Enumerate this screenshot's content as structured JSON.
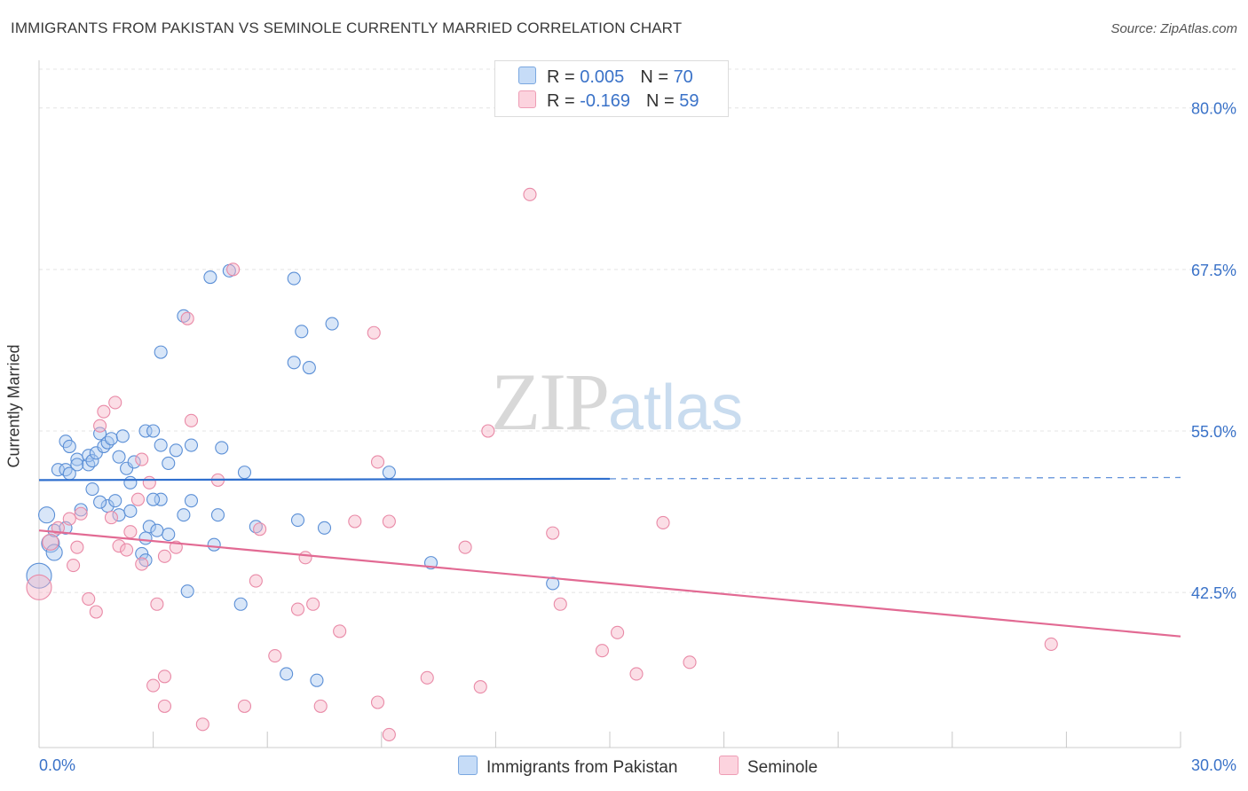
{
  "title": "IMMIGRANTS FROM PAKISTAN VS SEMINOLE CURRENTLY MARRIED CORRELATION CHART",
  "source": "Source: ZipAtlas.com",
  "watermark": {
    "zip": "ZIP",
    "atlas": "atlas"
  },
  "legend": {
    "rows": [
      {
        "r_label": "R = ",
        "r_value": "0.005",
        "n_label": "N = ",
        "n_value": "70",
        "color": "#a9c8f0"
      },
      {
        "r_label": "R = ",
        "r_value": "-0.169",
        "n_label": "N = ",
        "n_value": "59",
        "color": "#f7b6c8"
      }
    ]
  },
  "bottom_legend": {
    "pakistan": "Immigrants from Pakistan",
    "seminole": "Seminole"
  },
  "chart_data": {
    "type": "scatter",
    "ylabel": "Currently Married",
    "xlim": [
      0,
      30
    ],
    "ylim": [
      30.5,
      83
    ],
    "x_tick_labels": {
      "min": "0.0%",
      "max": "30.0%"
    },
    "y_ticks": [
      {
        "value": 80.0,
        "label": "80.0%"
      },
      {
        "value": 67.5,
        "label": "67.5%"
      },
      {
        "value": 55.0,
        "label": "55.0%"
      },
      {
        "value": 42.5,
        "label": "42.5%"
      }
    ],
    "grid": true,
    "series": [
      {
        "name": "Immigrants from Pakistan",
        "color": "#5b8fd6",
        "fill": "#a9c8f0",
        "trend": {
          "x": [
            0,
            15
          ],
          "y": [
            51.2,
            51.3
          ],
          "dashed_to": [
            30,
            51.4
          ],
          "color": "#2f6fce"
        },
        "points": [
          [
            0.2,
            48.5,
            9
          ],
          [
            0.3,
            46.3,
            10
          ],
          [
            0.4,
            45.6,
            9
          ],
          [
            0.0,
            43.8,
            14
          ],
          [
            0.5,
            52.0,
            7
          ],
          [
            0.7,
            52.0,
            7
          ],
          [
            0.8,
            51.7,
            7
          ],
          [
            0.7,
            54.2,
            7
          ],
          [
            0.8,
            53.8,
            7
          ],
          [
            1.0,
            52.8,
            7
          ],
          [
            1.0,
            52.4,
            7
          ],
          [
            1.3,
            52.4,
            7
          ],
          [
            1.3,
            53.1,
            7
          ],
          [
            1.4,
            52.7,
            7
          ],
          [
            1.5,
            53.3,
            7
          ],
          [
            1.7,
            53.8,
            7
          ],
          [
            1.6,
            54.8,
            7
          ],
          [
            1.8,
            54.1,
            7
          ],
          [
            1.9,
            54.4,
            7
          ],
          [
            2.1,
            53.0,
            7
          ],
          [
            2.2,
            54.6,
            7
          ],
          [
            2.3,
            52.1,
            7
          ],
          [
            2.5,
            52.6,
            7
          ],
          [
            2.8,
            55.0,
            7
          ],
          [
            3.0,
            55.0,
            7
          ],
          [
            3.2,
            53.9,
            7
          ],
          [
            3.4,
            52.5,
            7
          ],
          [
            3.6,
            53.5,
            7
          ],
          [
            4.0,
            53.9,
            7
          ],
          [
            4.8,
            53.7,
            7
          ],
          [
            5.4,
            51.8,
            7
          ],
          [
            0.4,
            47.3,
            7
          ],
          [
            0.7,
            47.5,
            7
          ],
          [
            1.1,
            48.9,
            7
          ],
          [
            1.8,
            49.2,
            7
          ],
          [
            2.0,
            49.6,
            7
          ],
          [
            2.1,
            48.5,
            7
          ],
          [
            2.4,
            48.8,
            7
          ],
          [
            2.9,
            47.6,
            7
          ],
          [
            3.2,
            49.7,
            7
          ],
          [
            3.4,
            47.0,
            7
          ],
          [
            3.8,
            48.5,
            7
          ],
          [
            4.0,
            49.6,
            7
          ],
          [
            4.7,
            48.5,
            7
          ],
          [
            5.7,
            47.6,
            7
          ],
          [
            6.8,
            48.1,
            7
          ],
          [
            7.5,
            47.5,
            7
          ],
          [
            9.2,
            51.8,
            7
          ],
          [
            1.6,
            49.5,
            7
          ],
          [
            2.7,
            45.5,
            7
          ],
          [
            2.8,
            45.0,
            7
          ],
          [
            3.1,
            47.3,
            7
          ],
          [
            4.6,
            46.2,
            7
          ],
          [
            1.4,
            50.5,
            7
          ],
          [
            2.4,
            51.0,
            7
          ],
          [
            3.0,
            49.7,
            7
          ],
          [
            2.8,
            46.7,
            7
          ],
          [
            3.9,
            42.6,
            7
          ],
          [
            5.3,
            41.6,
            7
          ],
          [
            6.5,
            36.2,
            7
          ],
          [
            7.3,
            35.7,
            7
          ],
          [
            10.3,
            44.8,
            7
          ],
          [
            13.5,
            43.2,
            7
          ],
          [
            4.5,
            66.9,
            7
          ],
          [
            5.0,
            67.4,
            7
          ],
          [
            6.7,
            66.8,
            7
          ],
          [
            3.8,
            63.9,
            7
          ],
          [
            6.9,
            62.7,
            7
          ],
          [
            7.7,
            63.3,
            7
          ],
          [
            3.2,
            61.1,
            7
          ],
          [
            6.7,
            60.3,
            7
          ],
          [
            7.1,
            59.9,
            7
          ]
        ]
      },
      {
        "name": "Seminole",
        "color": "#e98aa7",
        "fill": "#f7b6c8",
        "trend": {
          "x": [
            0,
            30
          ],
          "y": [
            47.3,
            39.1
          ],
          "color": "#e26a93"
        },
        "points": [
          [
            0.0,
            42.9,
            14
          ],
          [
            0.3,
            46.4,
            9
          ],
          [
            0.5,
            47.5,
            7
          ],
          [
            0.8,
            48.2,
            7
          ],
          [
            0.9,
            44.6,
            7
          ],
          [
            1.0,
            46.0,
            7
          ],
          [
            1.1,
            48.6,
            7
          ],
          [
            1.3,
            42.0,
            7
          ],
          [
            1.5,
            41.0,
            7
          ],
          [
            1.6,
            55.4,
            7
          ],
          [
            1.7,
            56.5,
            7
          ],
          [
            2.0,
            57.2,
            7
          ],
          [
            1.9,
            48.3,
            7
          ],
          [
            2.1,
            46.1,
            7
          ],
          [
            2.3,
            45.8,
            7
          ],
          [
            2.4,
            47.2,
            7
          ],
          [
            2.6,
            49.7,
            7
          ],
          [
            2.7,
            52.8,
            7
          ],
          [
            2.9,
            51.0,
            7
          ],
          [
            3.1,
            41.6,
            7
          ],
          [
            3.3,
            45.3,
            7
          ],
          [
            3.6,
            46.0,
            7
          ],
          [
            3.9,
            63.7,
            7
          ],
          [
            4.0,
            55.8,
            7
          ],
          [
            4.7,
            51.2,
            7
          ],
          [
            5.1,
            67.5,
            7
          ],
          [
            5.7,
            43.4,
            7
          ],
          [
            5.8,
            47.4,
            7
          ],
          [
            6.2,
            37.6,
            7
          ],
          [
            6.8,
            41.2,
            7
          ],
          [
            7.0,
            45.2,
            7
          ],
          [
            7.2,
            41.6,
            7
          ],
          [
            7.9,
            39.5,
            7
          ],
          [
            8.3,
            48.0,
            7
          ],
          [
            8.9,
            52.6,
            7
          ],
          [
            8.8,
            62.6,
            7
          ],
          [
            9.2,
            48.0,
            7
          ],
          [
            10.2,
            35.9,
            7
          ],
          [
            11.2,
            46.0,
            7
          ],
          [
            11.6,
            35.2,
            7
          ],
          [
            11.8,
            55.0,
            7
          ],
          [
            12.9,
            73.3,
            7
          ],
          [
            13.5,
            47.1,
            7
          ],
          [
            13.7,
            41.6,
            7
          ],
          [
            14.8,
            38.0,
            7
          ],
          [
            15.2,
            39.4,
            7
          ],
          [
            15.7,
            36.2,
            7
          ],
          [
            16.4,
            47.9,
            7
          ],
          [
            17.1,
            37.1,
            7
          ],
          [
            26.6,
            38.5,
            7
          ],
          [
            3.0,
            35.3,
            7
          ],
          [
            3.3,
            36.0,
            7
          ],
          [
            3.3,
            33.7,
            7
          ],
          [
            4.3,
            32.3,
            7
          ],
          [
            5.4,
            33.7,
            7
          ],
          [
            7.4,
            33.7,
            7
          ],
          [
            8.9,
            34.0,
            7
          ],
          [
            9.2,
            31.5,
            7
          ],
          [
            2.7,
            44.7,
            7
          ]
        ]
      }
    ]
  }
}
